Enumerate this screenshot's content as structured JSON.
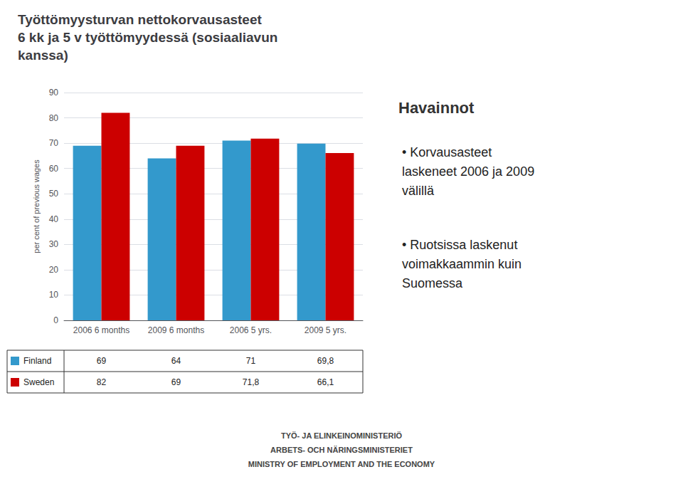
{
  "chart_data": {
    "type": "bar",
    "title": "Työttömyysturvan nettokorvausasteet\n6 kk ja 5 v työttömyydessä (sosiaaliavun\nkanssa)",
    "ylabel": "per cent of previous wages",
    "categories": [
      "2006 6 months",
      "2009 6 months",
      "2006 5 yrs.",
      "2009 5 yrs."
    ],
    "series": [
      {
        "name": "Finland",
        "color": "#3399CC",
        "values": [
          69,
          64,
          71,
          69.8
        ],
        "value_labels": [
          "69",
          "64",
          "71",
          "69,8"
        ]
      },
      {
        "name": "Sweden",
        "color": "#CC0000",
        "values": [
          82,
          69,
          71.8,
          66.1
        ],
        "value_labels": [
          "82",
          "69",
          "71,8",
          "66,1"
        ]
      }
    ],
    "ylim": [
      0,
      90
    ],
    "yticks": [
      0,
      10,
      20,
      30,
      40,
      50,
      60,
      70,
      80,
      90
    ],
    "grid": true,
    "annotations": [
      "Havainnot",
      "• Korvausasteet\nlaskeneet 2006 ja 2009\nvälillä",
      "• Ruotsissa laskenut\nvoimakkaammin kuin\nSuomessa",
      "TYÖ- JA ELINKEINOMINISTERIÖ",
      "ARBETS- OCH NÄRINGSMINISTERIET",
      "MINISTRY OF EMPLOYMENT AND THE ECONOMY"
    ]
  }
}
